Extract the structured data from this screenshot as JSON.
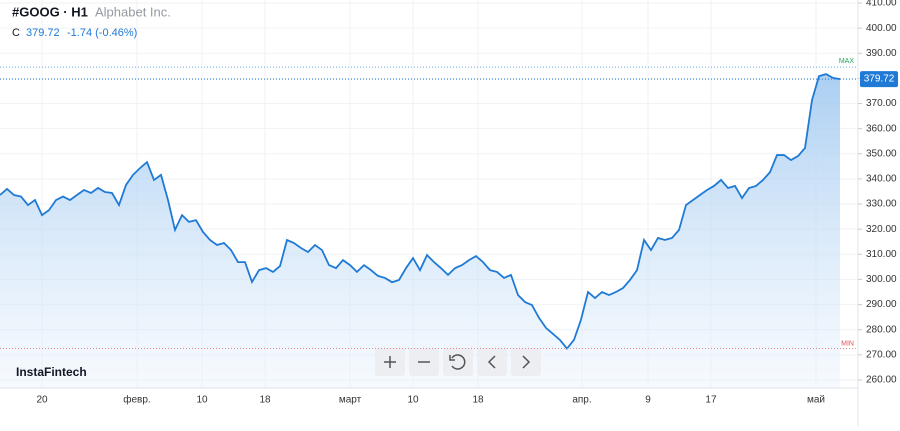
{
  "chart_data": {
    "type": "area",
    "symbol": "#GOOG · H1",
    "company": "Alphabet Inc.",
    "price_prefix": "C",
    "change_label": "-1.74 (-0.46%)",
    "watermark": "InstaFintech",
    "max_label": "MAX",
    "min_label": "MIN",
    "max_level": 384.5,
    "min_level": 272.5,
    "color": "#1f7ad6",
    "values": [
      333.6,
      336,
      333.6,
      333,
      329.6,
      331.6,
      325.6,
      327.6,
      331.6,
      333,
      331.6,
      333.6,
      335.6,
      334.4,
      336.4,
      334.8,
      334.4,
      329.6,
      337.6,
      341.6,
      344.3,
      346.7,
      339.6,
      341.6,
      331.6,
      319.7,
      325.6,
      322.9,
      323.6,
      318.9,
      315.7,
      313.7,
      314.5,
      311.7,
      306.9,
      306.9,
      299,
      303.7,
      304.5,
      303,
      305.3,
      315.7,
      314.5,
      312.5,
      310.9,
      313.7,
      311.7,
      305.7,
      304.5,
      307.7,
      305.7,
      303,
      305.7,
      303.7,
      301.4,
      300.6,
      298.9,
      299.8,
      304.5,
      308.5,
      303.7,
      309.7,
      306.9,
      304.5,
      301.8,
      304.5,
      305.7,
      307.7,
      309.3,
      306.9,
      303.7,
      303,
      300.6,
      301.8,
      293.8,
      291,
      289.8,
      284.7,
      280.7,
      278.3,
      275.9,
      272.5,
      276,
      284,
      295,
      292.6,
      295,
      293.8,
      295,
      296.6,
      299.8,
      303.7,
      315.7,
      311.7,
      316.5,
      315.7,
      316.5,
      319.7,
      329.6,
      331.6,
      333.6,
      335.6,
      337.2,
      339.6,
      336.4,
      337.2,
      332.4,
      336.4,
      337.2,
      339.6,
      342.7,
      349.5,
      349.5,
      347.5,
      349.1,
      352.3,
      371.4,
      380.9,
      381.7,
      380.2,
      379.72
    ],
    "xlim": [
      0,
      122.57
    ],
    "xticks": [
      {
        "value": 6,
        "label": "20"
      },
      {
        "value": 19.57,
        "label": "февр."
      },
      {
        "value": 28.86,
        "label": "10"
      },
      {
        "value": 37.86,
        "label": "18"
      },
      {
        "value": 50,
        "label": "март"
      },
      {
        "value": 59,
        "label": "10"
      },
      {
        "value": 68.29,
        "label": "18"
      },
      {
        "value": 83.14,
        "label": "апр."
      },
      {
        "value": 92.57,
        "label": "9"
      },
      {
        "value": 101.57,
        "label": "17"
      },
      {
        "value": 116.57,
        "label": "май"
      }
    ],
    "ylim": [
      256.8,
      411.2
    ],
    "yticks": [
      {
        "value": 260,
        "label": "260.00"
      },
      {
        "value": 270,
        "label": "270.00"
      },
      {
        "value": 280,
        "label": "280.00"
      },
      {
        "value": 290,
        "label": "290.00"
      },
      {
        "value": 300,
        "label": "300.00"
      },
      {
        "value": 310,
        "label": "310.00"
      },
      {
        "value": 320,
        "label": "320.00"
      },
      {
        "value": 330,
        "label": "330.00"
      },
      {
        "value": 340,
        "label": "340.00"
      },
      {
        "value": 350,
        "label": "350.00"
      },
      {
        "value": 360,
        "label": "360.00"
      },
      {
        "value": 370,
        "label": "370.00"
      },
      {
        "value": 380,
        "label": "380.00"
      },
      {
        "value": 390,
        "label": "390.00"
      },
      {
        "value": 400,
        "label": "400.00"
      },
      {
        "value": 410,
        "label": "410.00"
      }
    ],
    "grid": true
  }
}
